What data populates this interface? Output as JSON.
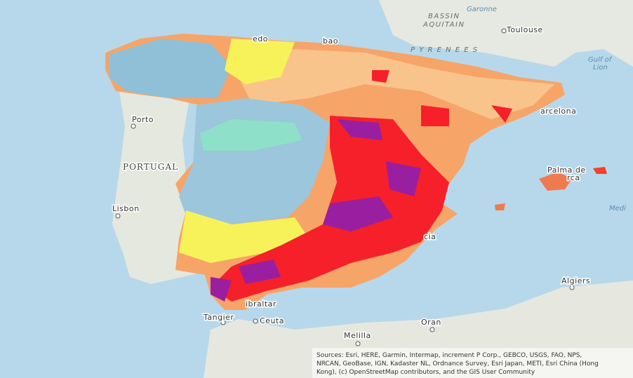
{
  "labels": {
    "bassin": "BASSIN",
    "aquitain": "AQUITAIN",
    "garonne": "Garonne",
    "toulouse": "Toulouse",
    "pyrenees": "P Y R E N E E S",
    "gulf1": "Gulf of",
    "gulf2": "Lion",
    "oviedo": "edo",
    "bilbao": "bao",
    "porto": "Porto",
    "portugal": "PORTUGAL",
    "lisbon": "Lisbon",
    "barcelona": "arcelona",
    "palma1": "Palma de",
    "palma2": "rca",
    "medi": "Medi",
    "valencia": "cia",
    "algiers": "Algiers",
    "tangier": "Tangier",
    "gibraltar": "ibraltar",
    "ceuta": "Ceuta",
    "melilla": "Melilla",
    "oran": "Oran"
  },
  "attribution": {
    "line1": "Sources: Esri, HERE, Garmin, Intermap, increment P Corp., GEBCO, USGS, FAO, NPS,",
    "line2": "NRCAN, GeoBase, IGN, Kadaster NL, Ordnance Survey, Esri Japan, METI, Esri China (Hong",
    "line3": "Kong), (c) OpenStreetMap contributors, and the GIS User Community"
  }
}
